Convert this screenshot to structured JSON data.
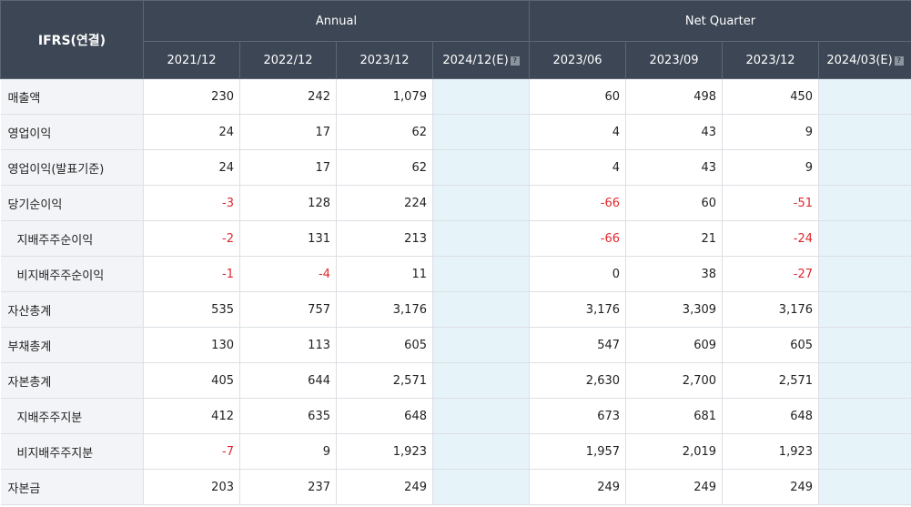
{
  "header": {
    "corner": "IFRS(연결)",
    "group_annual": "Annual",
    "group_quarter": "Net Quarter",
    "annual_cols": [
      "2021/12",
      "2022/12",
      "2023/12",
      "2024/12(E)"
    ],
    "quarter_cols": [
      "2023/06",
      "2023/09",
      "2023/12",
      "2024/03(E)"
    ],
    "estimate_badge": "?"
  },
  "colors": {
    "header_bg": "#3c4654",
    "negative": "#e0282e",
    "estimate_bg": "#e6f4f9",
    "label_bg": "#f2f4f7"
  },
  "rows": [
    {
      "label": "매출액",
      "values": [
        "230",
        "242",
        "1,079",
        "",
        "60",
        "498",
        "450",
        ""
      ]
    },
    {
      "label": "영업이익",
      "values": [
        "24",
        "17",
        "62",
        "",
        "4",
        "43",
        "9",
        ""
      ]
    },
    {
      "label": "영업이익(발표기준)",
      "values": [
        "24",
        "17",
        "62",
        "",
        "4",
        "43",
        "9",
        ""
      ]
    },
    {
      "label": "당기순이익",
      "values": [
        "-3",
        "128",
        "224",
        "",
        "-66",
        "60",
        "-51",
        ""
      ]
    },
    {
      "label": "지배주주순이익",
      "values": [
        "-2",
        "131",
        "213",
        "",
        "-66",
        "21",
        "-24",
        ""
      ]
    },
    {
      "label": "비지배주주순이익",
      "values": [
        "-1",
        "-4",
        "11",
        "",
        "0",
        "38",
        "-27",
        ""
      ]
    },
    {
      "label": "자산총계",
      "values": [
        "535",
        "757",
        "3,176",
        "",
        "3,176",
        "3,309",
        "3,176",
        ""
      ]
    },
    {
      "label": "부채총계",
      "values": [
        "130",
        "113",
        "605",
        "",
        "547",
        "609",
        "605",
        ""
      ]
    },
    {
      "label": "자본총계",
      "values": [
        "405",
        "644",
        "2,571",
        "",
        "2,630",
        "2,700",
        "2,571",
        ""
      ]
    },
    {
      "label": "지배주주지분",
      "values": [
        "412",
        "635",
        "648",
        "",
        "673",
        "681",
        "648",
        ""
      ]
    },
    {
      "label": "비지배주주지분",
      "values": [
        "-7",
        "9",
        "1,923",
        "",
        "1,957",
        "2,019",
        "1,923",
        ""
      ]
    },
    {
      "label": "자본금",
      "values": [
        "203",
        "237",
        "249",
        "",
        "249",
        "249",
        "249",
        ""
      ]
    }
  ]
}
